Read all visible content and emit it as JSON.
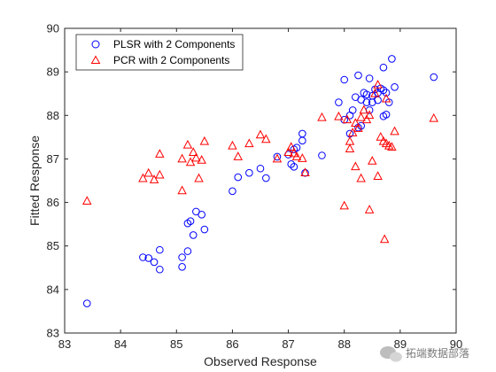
{
  "chart_data": {
    "type": "scatter",
    "title": "",
    "xlabel": "Observed Response",
    "ylabel": "Fitted Response",
    "xlim": [
      83,
      90
    ],
    "ylim": [
      83,
      90
    ],
    "xticks": [
      "83",
      "84",
      "85",
      "86",
      "87",
      "88",
      "89",
      "90"
    ],
    "yticks": [
      "83",
      "84",
      "85",
      "86",
      "87",
      "88",
      "89",
      "90"
    ],
    "grid": false,
    "legend_position": "top-left",
    "series": [
      {
        "name": "PLSR with 2 Components",
        "marker": "circle",
        "color": "#0000ff",
        "points": [
          [
            83.4,
            83.68
          ],
          [
            84.4,
            84.74
          ],
          [
            84.5,
            84.72
          ],
          [
            84.6,
            84.63
          ],
          [
            84.7,
            84.91
          ],
          [
            84.7,
            84.46
          ],
          [
            85.1,
            84.74
          ],
          [
            85.1,
            84.52
          ],
          [
            85.2,
            84.88
          ],
          [
            85.2,
            85.52
          ],
          [
            85.25,
            85.57
          ],
          [
            85.3,
            85.25
          ],
          [
            85.35,
            85.79
          ],
          [
            85.45,
            85.72
          ],
          [
            85.5,
            85.38
          ],
          [
            86.0,
            86.26
          ],
          [
            86.1,
            86.58
          ],
          [
            86.3,
            86.68
          ],
          [
            86.5,
            86.78
          ],
          [
            86.6,
            86.56
          ],
          [
            86.8,
            87.05
          ],
          [
            87.0,
            87.1
          ],
          [
            87.05,
            86.88
          ],
          [
            87.1,
            86.82
          ],
          [
            87.1,
            87.22
          ],
          [
            87.15,
            87.26
          ],
          [
            87.25,
            87.58
          ],
          [
            87.25,
            87.42
          ],
          [
            87.3,
            86.68
          ],
          [
            87.6,
            87.08
          ],
          [
            87.9,
            88.3
          ],
          [
            88.0,
            88.82
          ],
          [
            88.0,
            87.9
          ],
          [
            88.1,
            88.0
          ],
          [
            88.1,
            87.58
          ],
          [
            88.15,
            88.12
          ],
          [
            88.2,
            88.42
          ],
          [
            88.25,
            88.92
          ],
          [
            88.25,
            87.72
          ],
          [
            88.3,
            87.76
          ],
          [
            88.3,
            88.36
          ],
          [
            88.35,
            88.52
          ],
          [
            88.4,
            88.48
          ],
          [
            88.4,
            88.3
          ],
          [
            88.45,
            88.85
          ],
          [
            88.45,
            88.12
          ],
          [
            88.5,
            88.3
          ],
          [
            88.5,
            88.45
          ],
          [
            88.55,
            88.6
          ],
          [
            88.6,
            88.35
          ],
          [
            88.6,
            88.52
          ],
          [
            88.65,
            88.62
          ],
          [
            88.7,
            87.98
          ],
          [
            88.7,
            89.1
          ],
          [
            88.7,
            88.58
          ],
          [
            88.75,
            88.52
          ],
          [
            88.75,
            88.02
          ],
          [
            88.8,
            88.3
          ],
          [
            88.85,
            89.3
          ],
          [
            88.9,
            88.65
          ],
          [
            89.6,
            88.88
          ]
        ]
      },
      {
        "name": "PCR with 2 Components",
        "marker": "triangle",
        "color": "#ff0000",
        "points": [
          [
            83.4,
            86.03
          ],
          [
            84.4,
            86.55
          ],
          [
            84.5,
            86.67
          ],
          [
            84.6,
            86.52
          ],
          [
            84.7,
            86.63
          ],
          [
            84.7,
            87.11
          ],
          [
            85.1,
            87.0
          ],
          [
            85.1,
            86.27
          ],
          [
            85.2,
            87.32
          ],
          [
            85.25,
            86.92
          ],
          [
            85.3,
            87.15
          ],
          [
            85.35,
            87.02
          ],
          [
            85.4,
            86.55
          ],
          [
            85.45,
            86.97
          ],
          [
            85.5,
            87.4
          ],
          [
            86.0,
            87.3
          ],
          [
            86.1,
            87.05
          ],
          [
            86.3,
            87.35
          ],
          [
            86.5,
            87.55
          ],
          [
            86.6,
            87.45
          ],
          [
            86.8,
            87.0
          ],
          [
            87.0,
            87.15
          ],
          [
            87.05,
            87.27
          ],
          [
            87.1,
            87.12
          ],
          [
            87.15,
            87.05
          ],
          [
            87.25,
            87.01
          ],
          [
            87.3,
            86.68
          ],
          [
            87.6,
            87.95
          ],
          [
            87.9,
            87.97
          ],
          [
            88.0,
            85.92
          ],
          [
            88.05,
            87.9
          ],
          [
            88.1,
            87.4
          ],
          [
            88.1,
            87.23
          ],
          [
            88.15,
            87.6
          ],
          [
            88.2,
            86.82
          ],
          [
            88.2,
            87.82
          ],
          [
            88.25,
            87.7
          ],
          [
            88.3,
            86.55
          ],
          [
            88.3,
            87.95
          ],
          [
            88.35,
            88.12
          ],
          [
            88.4,
            87.9
          ],
          [
            88.45,
            85.83
          ],
          [
            88.45,
            88.0
          ],
          [
            88.5,
            86.95
          ],
          [
            88.55,
            88.5
          ],
          [
            88.6,
            88.7
          ],
          [
            88.6,
            86.6
          ],
          [
            88.65,
            87.5
          ],
          [
            88.7,
            87.4
          ],
          [
            88.72,
            85.15
          ],
          [
            88.75,
            87.35
          ],
          [
            88.75,
            88.38
          ],
          [
            88.8,
            87.3
          ],
          [
            88.85,
            87.27
          ],
          [
            88.9,
            87.63
          ],
          [
            89.6,
            87.93
          ]
        ]
      }
    ]
  },
  "watermark": {
    "text": "拓端数据部落",
    "icon": "wechat-icon"
  },
  "colors": {
    "axis": "#262626",
    "background": "#ffffff",
    "box": "#262626"
  }
}
